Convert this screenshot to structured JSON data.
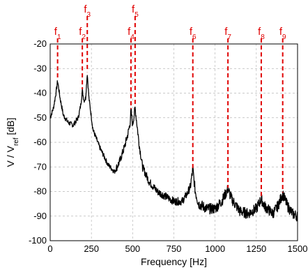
{
  "chart_data": {
    "type": "line",
    "xlabel": "Frequency [Hz]",
    "ylabel": {
      "base": "V / V",
      "sub": "ref",
      "unit": " [dB]"
    },
    "xlim": [
      0,
      1500
    ],
    "ylim": [
      -100,
      -20
    ],
    "xticks": [
      "0",
      "250",
      "500",
      "750",
      "1000",
      "1250",
      "1500"
    ],
    "yticks": [
      "-20",
      "-30",
      "-40",
      "-50",
      "-60",
      "-70",
      "-80",
      "-90",
      "-100"
    ],
    "grid": true,
    "line_color": "#000000",
    "marker_color": "#e00000",
    "peak_markers": [
      {
        "label": "f",
        "sub": "1",
        "x": 45
      },
      {
        "label": "f",
        "sub": "2",
        "x": 195
      },
      {
        "label": "f",
        "sub": "3",
        "x": 225
      },
      {
        "label": "f",
        "sub": "4",
        "x": 490
      },
      {
        "label": "f",
        "sub": "5",
        "x": 515
      },
      {
        "label": "f",
        "sub": "6",
        "x": 865
      },
      {
        "label": "f",
        "sub": "7",
        "x": 1078
      },
      {
        "label": "f",
        "sub": "8",
        "x": 1280
      },
      {
        "label": "f",
        "sub": "9",
        "x": 1410
      }
    ],
    "series": [
      {
        "x": [
          0,
          20,
          35,
          45,
          60,
          80,
          110,
          140,
          170,
          185,
          195,
          205,
          215,
          225,
          235,
          260,
          300,
          350,
          390,
          420,
          450,
          470,
          485,
          490,
          500,
          515,
          525,
          540,
          560,
          600,
          650,
          700,
          750,
          800,
          830,
          850,
          865,
          880,
          900,
          950,
          1000,
          1040,
          1078,
          1100,
          1150,
          1200,
          1250,
          1280,
          1300,
          1350,
          1380,
          1410,
          1440,
          1470,
          1500
        ],
        "y": [
          -50,
          -46,
          -40,
          -35,
          -42,
          -49,
          -52,
          -53,
          -50,
          -45,
          -39,
          -43,
          -42,
          -32,
          -42,
          -55,
          -62,
          -69,
          -72,
          -68,
          -62,
          -57,
          -52,
          -47,
          -53,
          -46,
          -52,
          -61,
          -70,
          -76,
          -80,
          -82,
          -84,
          -84,
          -81,
          -78,
          -71,
          -80,
          -85,
          -87,
          -87,
          -84,
          -79,
          -83,
          -88,
          -89,
          -87,
          -83,
          -86,
          -89,
          -86,
          -81,
          -86,
          -89,
          -90
        ]
      }
    ]
  }
}
